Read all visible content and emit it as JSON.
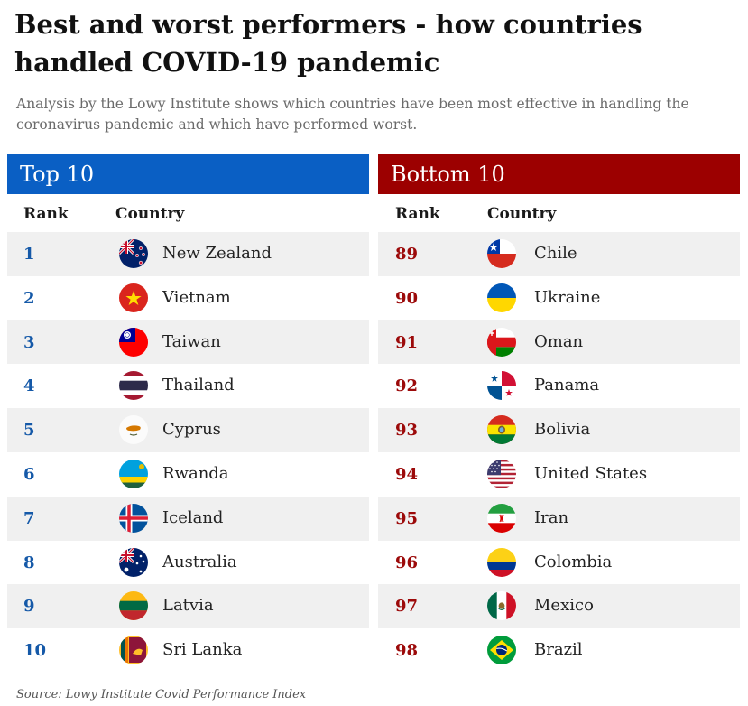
{
  "title": "Best and worst performers - how countries handled COVID-19 pandemic",
  "subtitle": "Analysis by the Lowy Institute shows which countries have been most effective in handling the coronavirus pandemic and which have performed worst.",
  "top": {
    "header": "Top 10",
    "color": "#0a5fc4",
    "rank_color": "#1559a8",
    "rank_label": "Rank",
    "country_label": "Country",
    "rows": [
      {
        "rank": "1",
        "country": "New Zealand",
        "flag": "new-zealand-flag"
      },
      {
        "rank": "2",
        "country": "Vietnam",
        "flag": "vietnam-flag"
      },
      {
        "rank": "3",
        "country": "Taiwan",
        "flag": "taiwan-flag"
      },
      {
        "rank": "4",
        "country": "Thailand",
        "flag": "thailand-flag"
      },
      {
        "rank": "5",
        "country": "Cyprus",
        "flag": "cyprus-flag"
      },
      {
        "rank": "6",
        "country": "Rwanda",
        "flag": "rwanda-flag"
      },
      {
        "rank": "7",
        "country": "Iceland",
        "flag": "iceland-flag"
      },
      {
        "rank": "8",
        "country": "Australia",
        "flag": "australia-flag"
      },
      {
        "rank": "9",
        "country": "Latvia",
        "flag": "latvia-flag"
      },
      {
        "rank": "10",
        "country": "Sri Lanka",
        "flag": "sri-lanka-flag"
      }
    ]
  },
  "bottom": {
    "header": "Bottom 10",
    "color": "#9c0000",
    "rank_color": "#9c0a0a",
    "rank_label": "Rank",
    "country_label": "Country",
    "rows": [
      {
        "rank": "89",
        "country": "Chile",
        "flag": "chile-flag"
      },
      {
        "rank": "90",
        "country": "Ukraine",
        "flag": "ukraine-flag"
      },
      {
        "rank": "91",
        "country": "Oman",
        "flag": "oman-flag"
      },
      {
        "rank": "92",
        "country": "Panama",
        "flag": "panama-flag"
      },
      {
        "rank": "93",
        "country": "Bolivia",
        "flag": "bolivia-flag"
      },
      {
        "rank": "94",
        "country": "United States",
        "flag": "united-states-flag"
      },
      {
        "rank": "95",
        "country": "Iran",
        "flag": "iran-flag"
      },
      {
        "rank": "96",
        "country": "Colombia",
        "flag": "colombia-flag"
      },
      {
        "rank": "97",
        "country": "Mexico",
        "flag": "mexico-flag"
      },
      {
        "rank": "98",
        "country": "Brazil",
        "flag": "brazil-flag"
      }
    ]
  },
  "source": "Source: Lowy Institute Covid Performance Index"
}
